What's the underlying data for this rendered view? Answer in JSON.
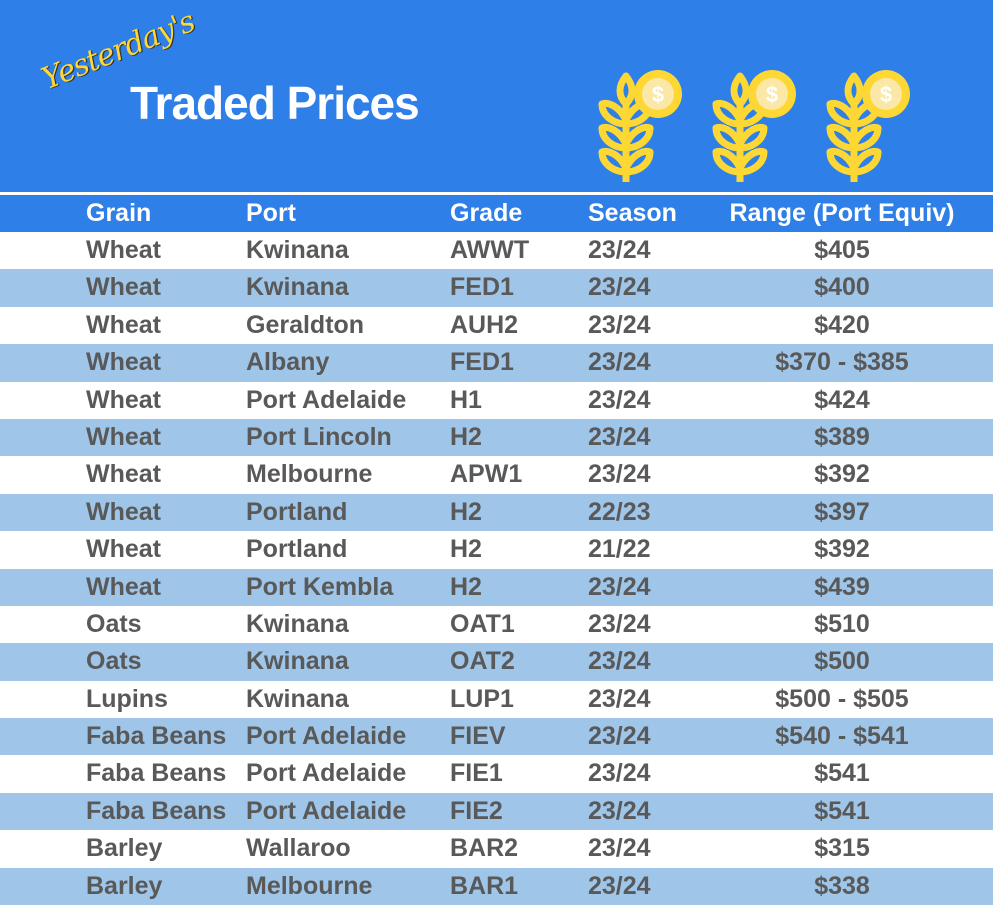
{
  "header": {
    "prefix": "Yesterday's",
    "title": "Traded Prices",
    "icon": "wheat-dollar-icon",
    "brand_color": "#2f7fe8",
    "accent_color": "#fdd835"
  },
  "table": {
    "columns": [
      "Grain",
      "Port",
      "Grade",
      "Season",
      "Range (Port Equiv)"
    ],
    "rows": [
      [
        "Wheat",
        "Kwinana",
        "AWWT",
        "23/24",
        "$405"
      ],
      [
        "Wheat",
        "Kwinana",
        "FED1",
        "23/24",
        "$400"
      ],
      [
        "Wheat",
        "Geraldton",
        "AUH2",
        "23/24",
        "$420"
      ],
      [
        "Wheat",
        "Albany",
        "FED1",
        "23/24",
        "$370 - $385"
      ],
      [
        "Wheat",
        "Port Adelaide",
        "H1",
        "23/24",
        "$424"
      ],
      [
        "Wheat",
        "Port Lincoln",
        "H2",
        "23/24",
        "$389"
      ],
      [
        "Wheat",
        "Melbourne",
        "APW1",
        "23/24",
        "$392"
      ],
      [
        "Wheat",
        "Portland",
        "H2",
        "22/23",
        "$397"
      ],
      [
        "Wheat",
        "Portland",
        "H2",
        "21/22",
        "$392"
      ],
      [
        "Wheat",
        "Port Kembla",
        "H2",
        "23/24",
        "$439"
      ],
      [
        "Oats",
        "Kwinana",
        "OAT1",
        "23/24",
        "$510"
      ],
      [
        "Oats",
        "Kwinana",
        "OAT2",
        "23/24",
        "$500"
      ],
      [
        "Lupins",
        "Kwinana",
        "LUP1",
        "23/24",
        "$500 - $505"
      ],
      [
        "Faba Beans",
        "Port Adelaide",
        "FIEV",
        "23/24",
        "$540 - $541"
      ],
      [
        "Faba Beans",
        "Port Adelaide",
        "FIE1",
        "23/24",
        "$541"
      ],
      [
        "Faba Beans",
        "Port Adelaide",
        "FIE2",
        "23/24",
        "$541"
      ],
      [
        "Barley",
        "Wallaroo",
        "BAR2",
        "23/24",
        "$315"
      ],
      [
        "Barley",
        "Melbourne",
        "BAR1",
        "23/24",
        "$338"
      ]
    ]
  }
}
